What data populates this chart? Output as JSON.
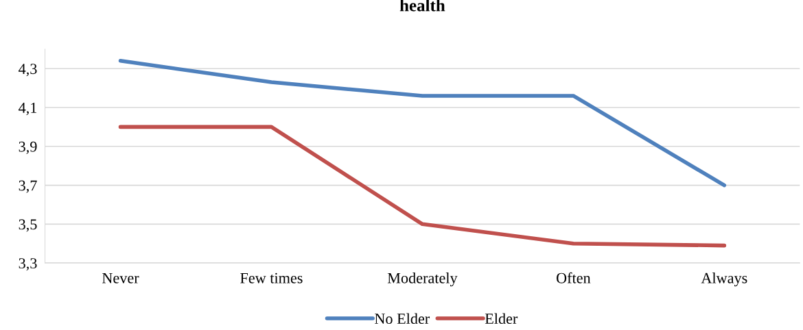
{
  "chart_data": {
    "type": "line",
    "title": "health",
    "categories": [
      "Never",
      "Few times",
      "Moderately",
      "Often",
      "Always"
    ],
    "series": [
      {
        "name": "No Elder",
        "color": "#4f81bd",
        "values": [
          4.34,
          4.23,
          4.16,
          4.16,
          3.7
        ]
      },
      {
        "name": "Elder",
        "color": "#c0504d",
        "values": [
          4.0,
          4.0,
          3.5,
          3.4,
          3.39
        ]
      }
    ],
    "ylim": [
      3.3,
      4.4
    ],
    "yticks": [
      {
        "value": 3.3,
        "label": "3,3"
      },
      {
        "value": 3.5,
        "label": "3,5"
      },
      {
        "value": 3.7,
        "label": "3,7"
      },
      {
        "value": 3.9,
        "label": "3,9"
      },
      {
        "value": 4.1,
        "label": "4,1"
      },
      {
        "value": 4.3,
        "label": "4,3"
      }
    ],
    "grid": "y",
    "legend": "bottom",
    "line_style": "solid",
    "marker": "none"
  }
}
